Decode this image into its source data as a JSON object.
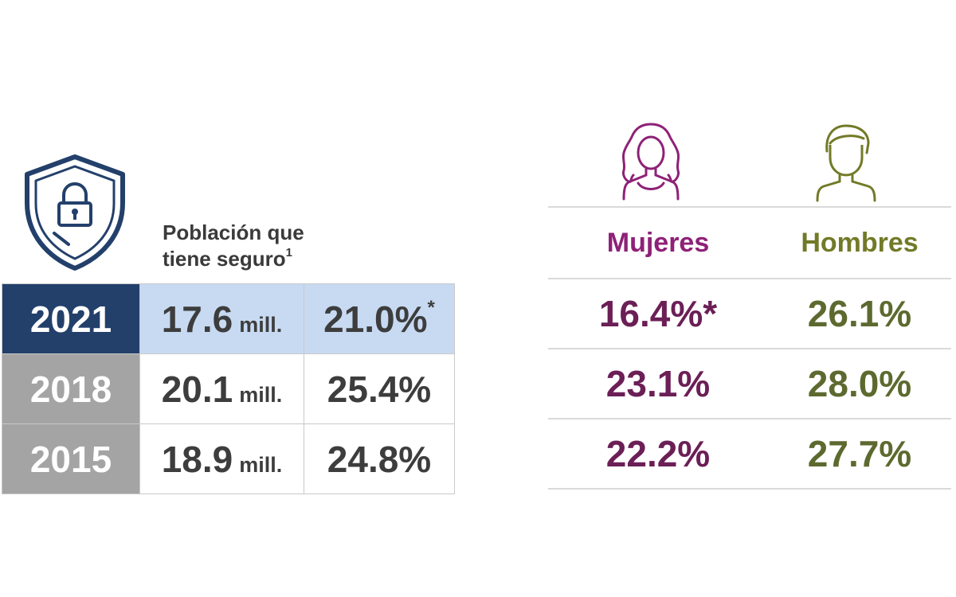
{
  "heading": {
    "line1": "Población que",
    "line2": "tiene seguro",
    "footnote": "1"
  },
  "colors": {
    "year_current": "#23406b",
    "year_past": "#a4a4a4",
    "highlight_row": "#c7daf2",
    "women": "#8e2177",
    "men": "#727a27",
    "shield": "#23406b"
  },
  "icons": {
    "shield": "shield-lock-icon",
    "woman": "woman-icon",
    "man": "man-icon"
  },
  "rows": [
    {
      "year": "2021",
      "population": "17.6",
      "unit": "mill.",
      "percent": "21.0%",
      "mark": "*"
    },
    {
      "year": "2018",
      "population": "20.1",
      "unit": "mill.",
      "percent": "25.4%",
      "mark": ""
    },
    {
      "year": "2015",
      "population": "18.9",
      "unit": "mill.",
      "percent": "24.8%",
      "mark": ""
    }
  ],
  "gender": {
    "women_label": "Mujeres",
    "men_label": "Hombres",
    "rows": [
      {
        "women": "16.4%*",
        "men": "26.1%"
      },
      {
        "women": "23.1%",
        "men": "28.0%"
      },
      {
        "women": "22.2%",
        "men": "27.7%"
      }
    ]
  }
}
